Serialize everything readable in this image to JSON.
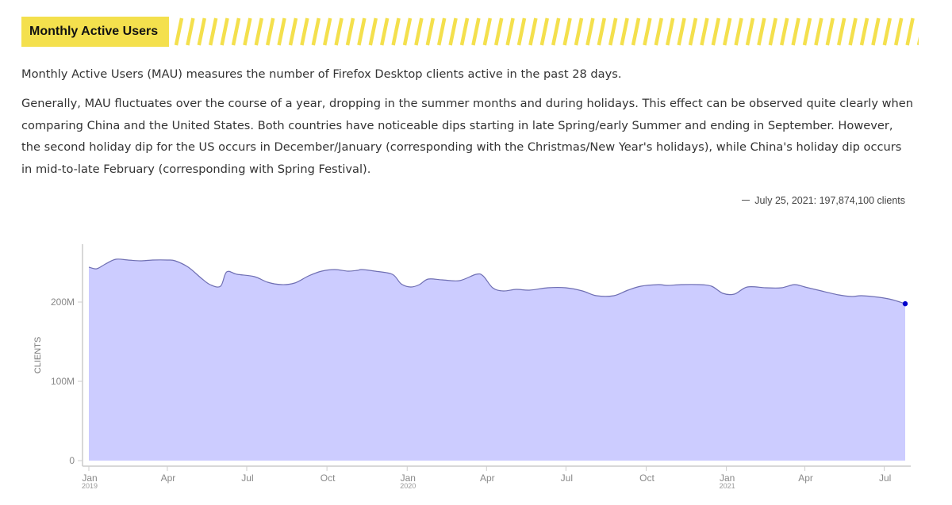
{
  "header": {
    "title": "Monthly Active Users"
  },
  "intro": {
    "p1": "Monthly Active Users (MAU) measures the number of Firefox Desktop clients active in the past 28 days.",
    "p2": "Generally, MAU fluctuates over the course of a year, dropping in the summer months and during holidays. This effect can be observed quite clearly when comparing China and the United States. Both countries have noticeable dips starting in late Spring/early Summer and ending in September. However, the second holiday dip for the US occurs in December/January (corresponding with the Christmas/New Year's holidays), while China's holiday dip occurs in mid-to-late February (corresponding with Spring Festival)."
  },
  "legend": {
    "text": "July 25, 2021: 197,874,100 clients"
  },
  "colors": {
    "header_bg": "#f4e04d",
    "area_fill": "#ccccff",
    "area_stroke": "#6f6fb3",
    "point": "#0000cc",
    "axis": "#cccccc"
  },
  "chart_data": {
    "type": "area",
    "ylabel": "CLIENTS",
    "xlabel": "",
    "ylim": [
      0,
      280000000
    ],
    "y_ticks": [
      {
        "value": 0,
        "label": "0"
      },
      {
        "value": 100000000,
        "label": "100M"
      },
      {
        "value": 200000000,
        "label": "200M"
      }
    ],
    "x_ticks": [
      {
        "date": "2019-01-01",
        "label": "Jan",
        "sub": "2019"
      },
      {
        "date": "2019-04-01",
        "label": "Apr",
        "sub": ""
      },
      {
        "date": "2019-07-01",
        "label": "Jul",
        "sub": ""
      },
      {
        "date": "2019-10-01",
        "label": "Oct",
        "sub": ""
      },
      {
        "date": "2020-01-01",
        "label": "Jan",
        "sub": "2020"
      },
      {
        "date": "2020-04-01",
        "label": "Apr",
        "sub": ""
      },
      {
        "date": "2020-07-01",
        "label": "Jul",
        "sub": ""
      },
      {
        "date": "2020-10-01",
        "label": "Oct",
        "sub": ""
      },
      {
        "date": "2021-01-01",
        "label": "Jan",
        "sub": "2021"
      },
      {
        "date": "2021-04-01",
        "label": "Apr",
        "sub": ""
      },
      {
        "date": "2021-07-01",
        "label": "Jul",
        "sub": ""
      }
    ],
    "x_range": [
      "2019-01-01",
      "2021-07-25"
    ],
    "series": [
      {
        "points": [
          [
            "2019-01-01",
            244000000
          ],
          [
            "2019-01-10",
            242000000
          ],
          [
            "2019-01-20",
            248000000
          ],
          [
            "2019-02-01",
            254000000
          ],
          [
            "2019-02-15",
            253000000
          ],
          [
            "2019-03-01",
            252000000
          ],
          [
            "2019-03-15",
            253000000
          ],
          [
            "2019-04-01",
            253000000
          ],
          [
            "2019-04-10",
            252000000
          ],
          [
            "2019-04-25",
            244000000
          ],
          [
            "2019-05-10",
            230000000
          ],
          [
            "2019-05-20",
            222000000
          ],
          [
            "2019-06-01",
            220000000
          ],
          [
            "2019-06-08",
            238000000
          ],
          [
            "2019-06-20",
            235000000
          ],
          [
            "2019-07-10",
            232000000
          ],
          [
            "2019-07-25",
            225000000
          ],
          [
            "2019-08-10",
            222000000
          ],
          [
            "2019-08-25",
            224000000
          ],
          [
            "2019-09-10",
            233000000
          ],
          [
            "2019-09-25",
            239000000
          ],
          [
            "2019-10-10",
            241000000
          ],
          [
            "2019-10-25",
            239000000
          ],
          [
            "2019-11-05",
            240000000
          ],
          [
            "2019-11-10",
            241000000
          ],
          [
            "2019-11-25",
            239000000
          ],
          [
            "2019-12-15",
            235000000
          ],
          [
            "2019-12-25",
            223000000
          ],
          [
            "2020-01-05",
            219000000
          ],
          [
            "2020-01-15",
            222000000
          ],
          [
            "2020-01-25",
            229000000
          ],
          [
            "2020-02-10",
            228000000
          ],
          [
            "2020-03-01",
            227000000
          ],
          [
            "2020-03-20",
            235000000
          ],
          [
            "2020-03-28",
            233000000
          ],
          [
            "2020-04-08",
            218000000
          ],
          [
            "2020-04-20",
            214000000
          ],
          [
            "2020-05-05",
            216000000
          ],
          [
            "2020-05-20",
            215000000
          ],
          [
            "2020-06-10",
            218000000
          ],
          [
            "2020-07-01",
            218000000
          ],
          [
            "2020-07-20",
            214000000
          ],
          [
            "2020-08-05",
            208000000
          ],
          [
            "2020-08-25",
            208000000
          ],
          [
            "2020-09-10",
            215000000
          ],
          [
            "2020-09-25",
            220000000
          ],
          [
            "2020-10-15",
            222000000
          ],
          [
            "2020-10-25",
            221000000
          ],
          [
            "2020-11-10",
            222000000
          ],
          [
            "2020-12-01",
            222000000
          ],
          [
            "2020-12-15",
            220000000
          ],
          [
            "2020-12-28",
            211000000
          ],
          [
            "2021-01-10",
            210000000
          ],
          [
            "2021-01-25",
            219000000
          ],
          [
            "2021-02-15",
            218000000
          ],
          [
            "2021-03-05",
            218000000
          ],
          [
            "2021-03-20",
            222000000
          ],
          [
            "2021-04-01",
            219000000
          ],
          [
            "2021-04-20",
            214000000
          ],
          [
            "2021-05-10",
            209000000
          ],
          [
            "2021-05-25",
            207000000
          ],
          [
            "2021-06-05",
            208000000
          ],
          [
            "2021-06-25",
            206000000
          ],
          [
            "2021-07-10",
            203000000
          ],
          [
            "2021-07-25",
            197874100
          ]
        ]
      }
    ],
    "highlight_point": {
      "date": "2021-07-25",
      "value": 197874100
    },
    "grid": false,
    "legend_position": "top-right"
  }
}
